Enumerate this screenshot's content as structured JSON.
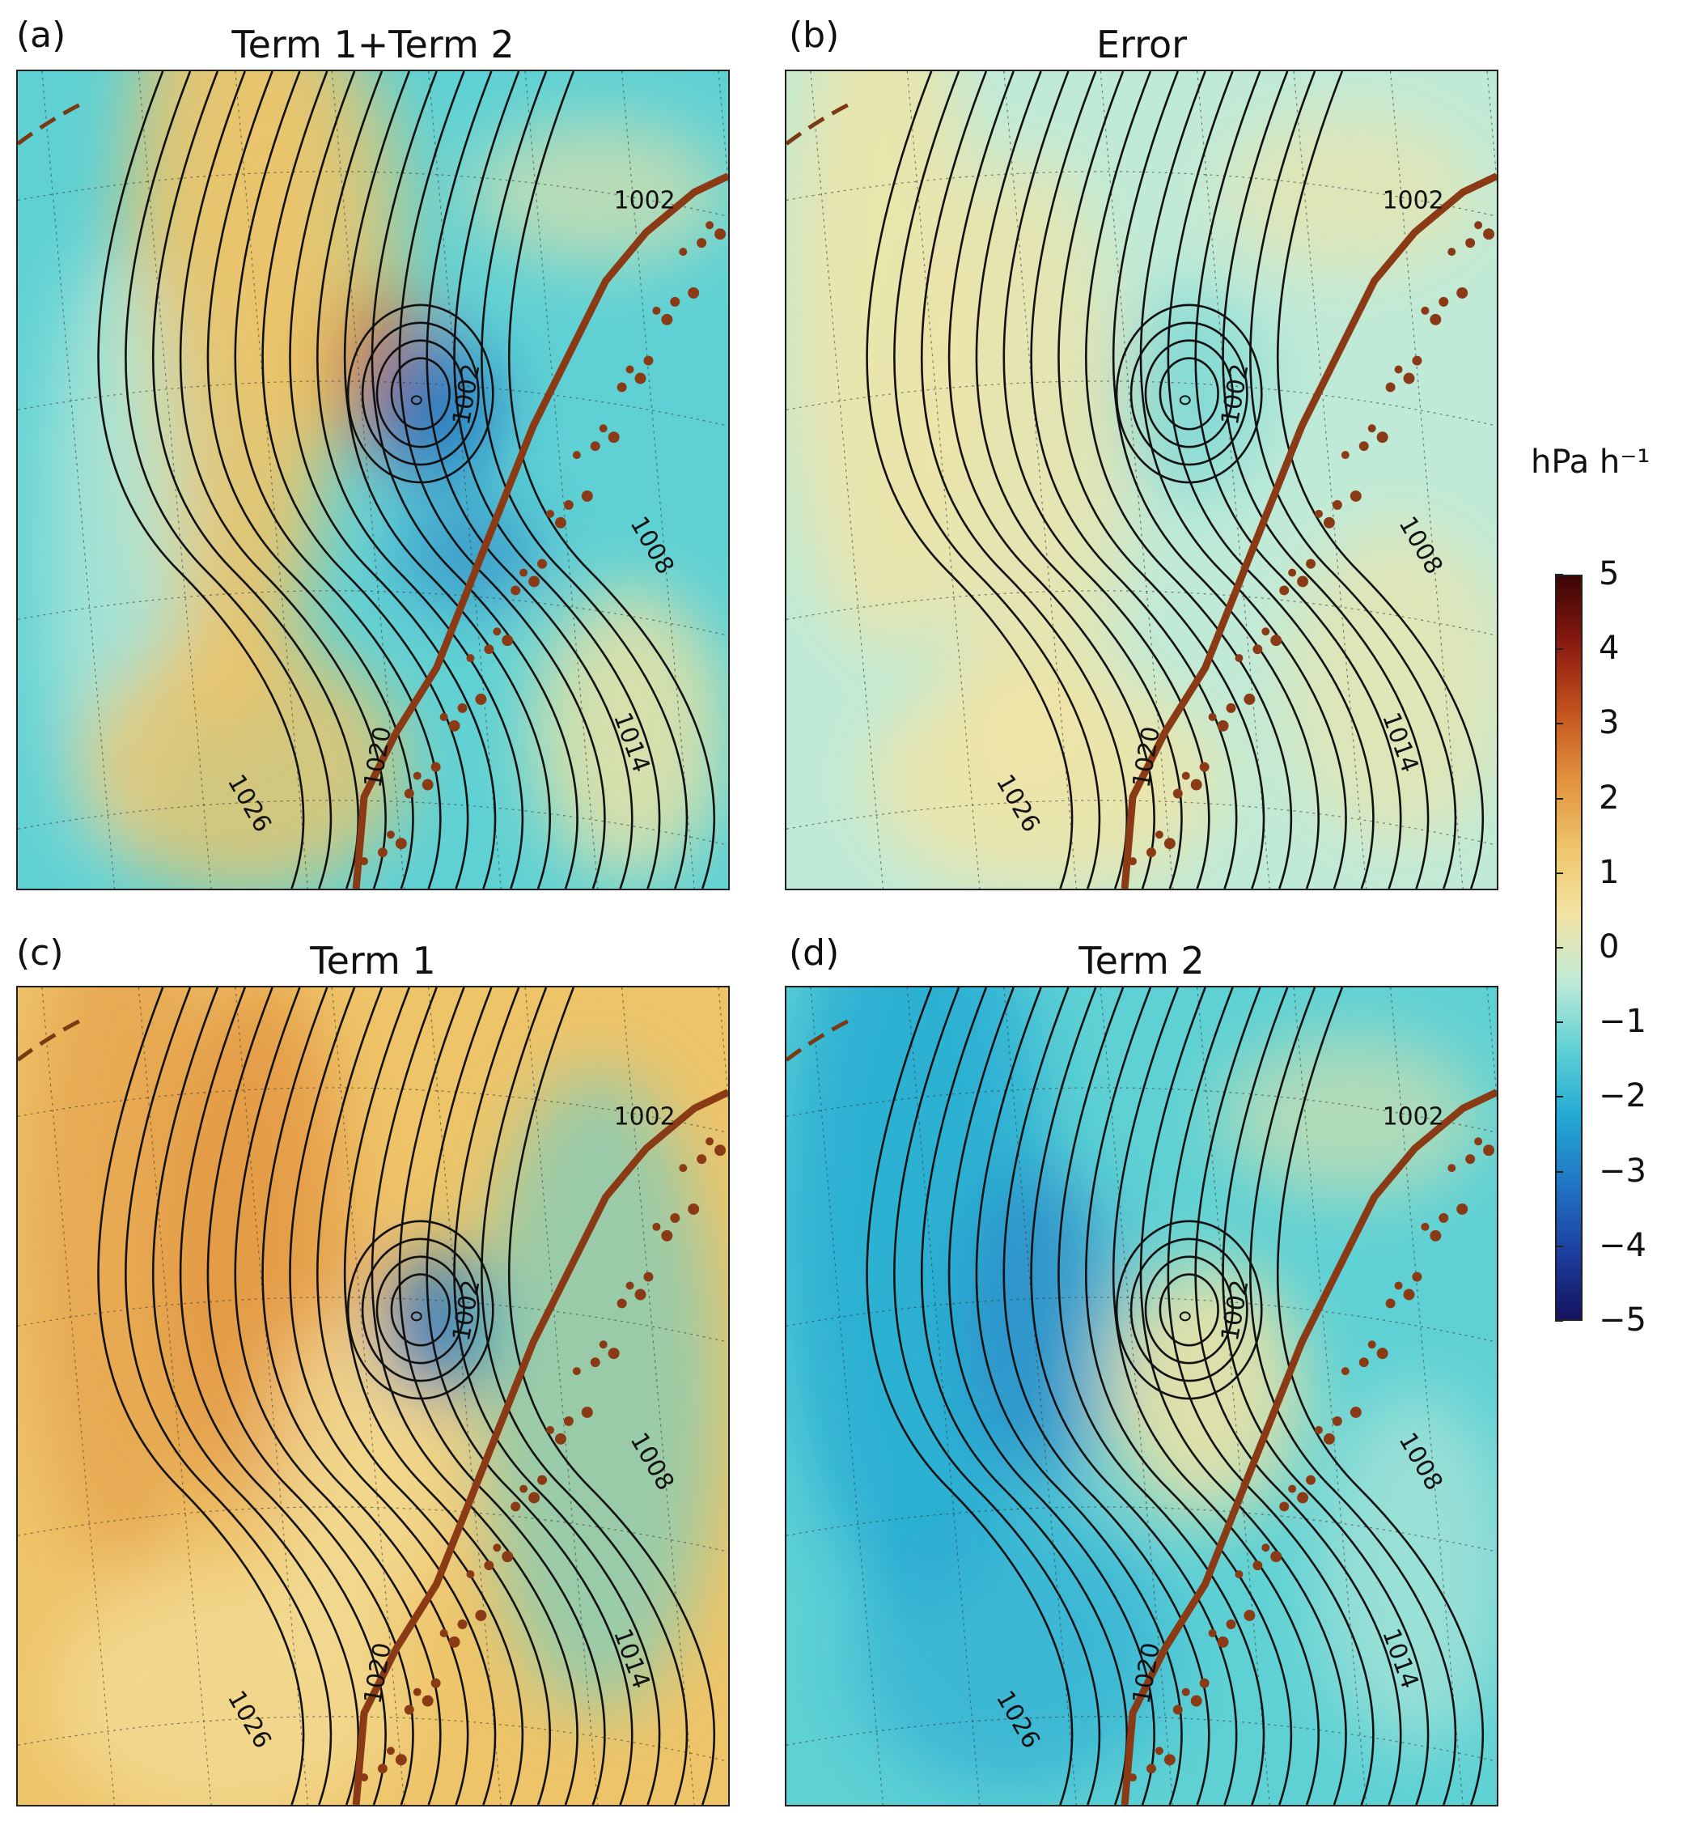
{
  "panels": [
    {
      "letter": "(a)",
      "title": "Term 1+Term 2",
      "scheme": "a"
    },
    {
      "letter": "(b)",
      "title": "Error",
      "scheme": "b"
    },
    {
      "letter": "(c)",
      "title": "Term 1",
      "scheme": "c"
    },
    {
      "letter": "(d)",
      "title": "Term 2",
      "scheme": "d"
    }
  ],
  "contour_labels": [
    "1002",
    "1002",
    "1008",
    "1014",
    "1026",
    "1020"
  ],
  "colorbar": {
    "unit": "hPa h⁻¹",
    "ticks": [
      "5",
      "4",
      "3",
      "2",
      "1",
      "0",
      "−1",
      "−2",
      "−3",
      "−4",
      "−5"
    ],
    "range": [
      -5,
      5
    ],
    "colors": [
      "#15135e",
      "#1c3fa0",
      "#2174c4",
      "#23a9d3",
      "#5fd1d4",
      "#bfead7",
      "#f3e3a3",
      "#eec469",
      "#e1913c",
      "#c4521e",
      "#8a1a10",
      "#3b0505"
    ]
  }
}
